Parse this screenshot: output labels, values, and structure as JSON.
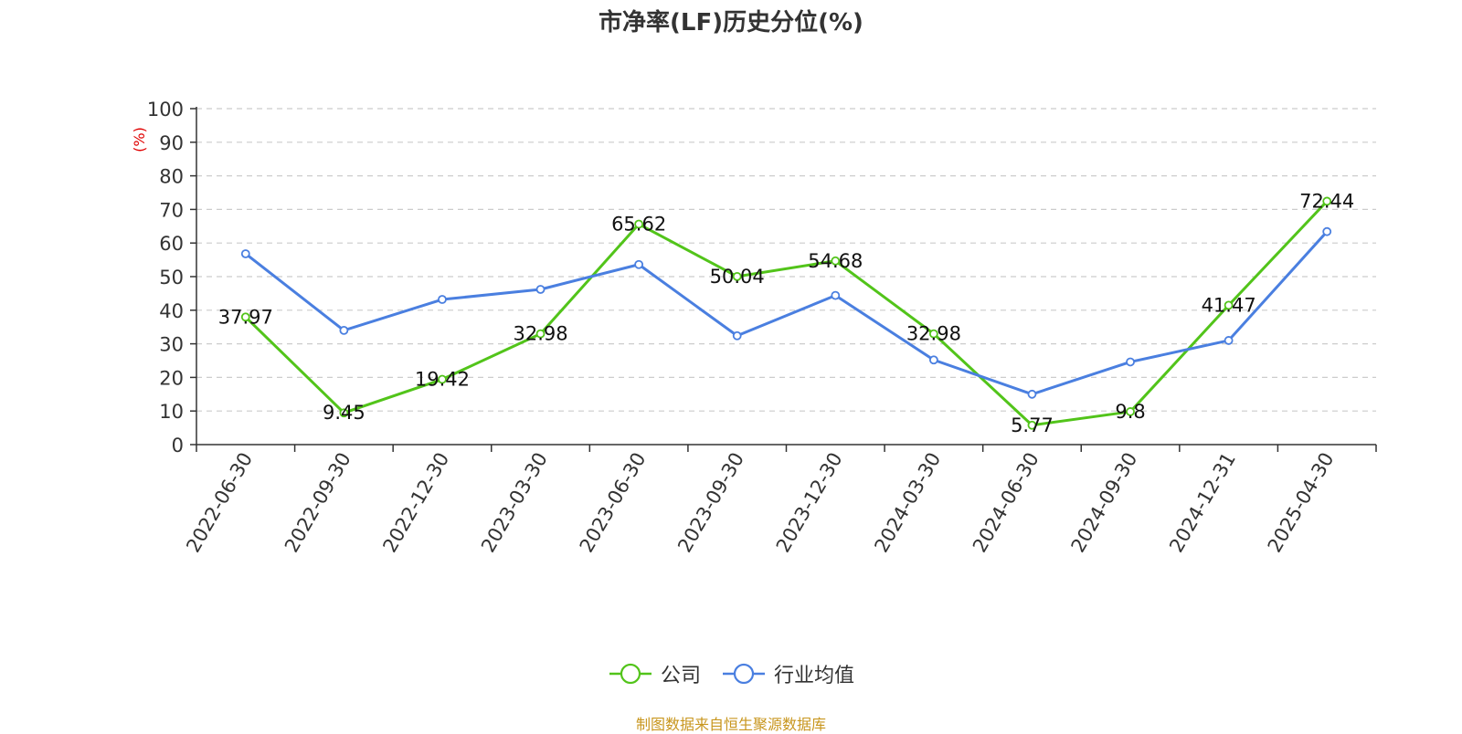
{
  "chart_data": {
    "type": "line",
    "title": "市净率(LF)历史分位(%)",
    "ylabel": "(%)",
    "xlabel": "",
    "ylim": [
      0,
      100
    ],
    "yticks": [
      0,
      10,
      20,
      30,
      40,
      50,
      60,
      70,
      80,
      90,
      100
    ],
    "grid": true,
    "legend_position": "bottom-center",
    "categories": [
      "2022-06-30",
      "2022-09-30",
      "2022-12-30",
      "2023-03-30",
      "2023-06-30",
      "2023-09-30",
      "2023-12-30",
      "2024-03-30",
      "2024-06-30",
      "2024-09-30",
      "2024-12-31",
      "2025-04-30"
    ],
    "series": [
      {
        "name": "公司",
        "color": "#52c41a",
        "values": [
          37.97,
          9.45,
          19.42,
          32.98,
          65.62,
          50.04,
          54.68,
          32.98,
          5.77,
          9.8,
          41.47,
          72.44
        ],
        "labels": [
          "37.97",
          "9.45",
          "19.42",
          "32.98",
          "65.62",
          "50.04",
          "54.68",
          "32.98",
          "5.77",
          "9.8",
          "41.47",
          "72.44"
        ]
      },
      {
        "name": "行业均值",
        "color": "#4a7fe0",
        "values": [
          56.8,
          34.0,
          43.2,
          46.2,
          53.6,
          32.4,
          44.4,
          25.2,
          15.0,
          24.6,
          31.0,
          63.4
        ]
      }
    ]
  },
  "source_text": "制图数据来自恒生聚源数据库",
  "colors": {
    "ylabel": "#e00000",
    "source": "#c8961e",
    "axis": "#333333",
    "grid": "#cccccc"
  }
}
